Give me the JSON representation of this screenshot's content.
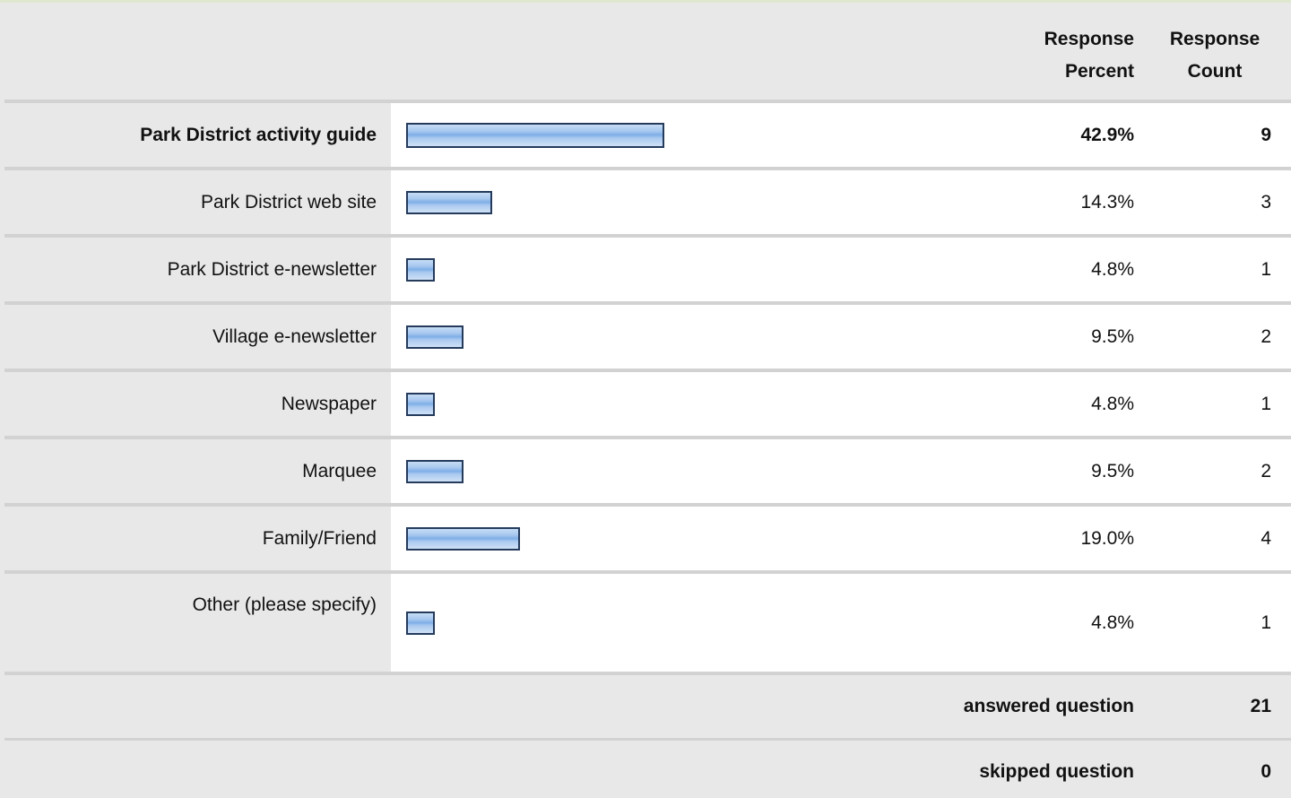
{
  "header": {
    "response_percent": "Response Percent",
    "response_count": "Response Count"
  },
  "chart_data": {
    "type": "bar",
    "categories": [
      "Park District activity guide",
      "Park District web site",
      "Park District e-newsletter",
      "Village e-newsletter",
      "Newspaper",
      "Marquee",
      "Family/Friend",
      "Other (please specify)"
    ],
    "percent_labels": [
      "42.9%",
      "14.3%",
      "4.8%",
      "9.5%",
      "4.8%",
      "9.5%",
      "19.0%",
      "4.8%"
    ],
    "values": [
      42.9,
      14.3,
      4.8,
      9.5,
      4.8,
      9.5,
      19.0,
      4.8
    ],
    "counts": [
      9,
      3,
      1,
      2,
      1,
      2,
      4,
      1
    ],
    "ylim": [
      0,
      100
    ],
    "highlighted": "Park District activity guide"
  },
  "footer": {
    "answered_label": "answered question",
    "answered_value": "21",
    "skipped_label": "skipped question",
    "skipped_value": "0"
  },
  "colors": {
    "bar_fill": "#a8c8ef",
    "bar_border": "#253b5c",
    "panel": "#e8e8e8",
    "plot_bg": "#ffffff"
  }
}
